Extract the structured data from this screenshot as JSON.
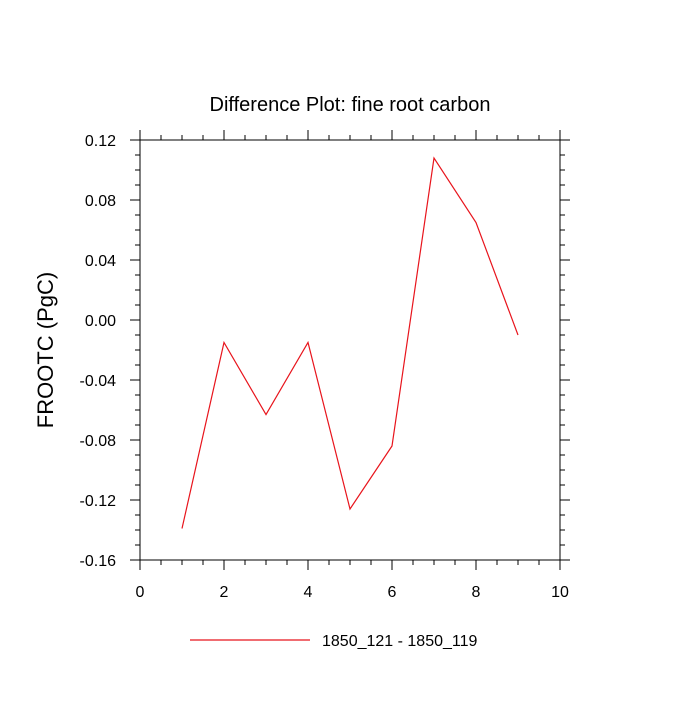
{
  "chart_data": {
    "type": "line",
    "title": "Difference Plot: fine root carbon",
    "xlabel": "",
    "ylabel": "FROOTC  (PgC)",
    "xlim": [
      0,
      10
    ],
    "ylim": [
      -0.16,
      0.12
    ],
    "x_ticks": [
      0,
      2,
      4,
      6,
      8,
      10
    ],
    "x_tick_labels": [
      "0",
      "2",
      "4",
      "6",
      "8",
      "10"
    ],
    "y_ticks": [
      -0.16,
      -0.12,
      -0.08,
      -0.04,
      0.0,
      0.04,
      0.08,
      0.12
    ],
    "y_tick_labels": [
      "-0.16",
      "-0.12",
      "-0.08",
      "-0.04",
      "0.00",
      "0.04",
      "0.08",
      "0.12"
    ],
    "grid": false,
    "legend_position": "bottom-center",
    "series": [
      {
        "name": "1850_121 - 1850_119",
        "color": "#e8141c",
        "x": [
          1,
          2,
          3,
          4,
          5,
          6,
          7,
          8,
          9
        ],
        "y": [
          -0.139,
          -0.015,
          -0.063,
          -0.015,
          -0.126,
          -0.084,
          0.108,
          0.065,
          -0.01
        ]
      }
    ]
  }
}
